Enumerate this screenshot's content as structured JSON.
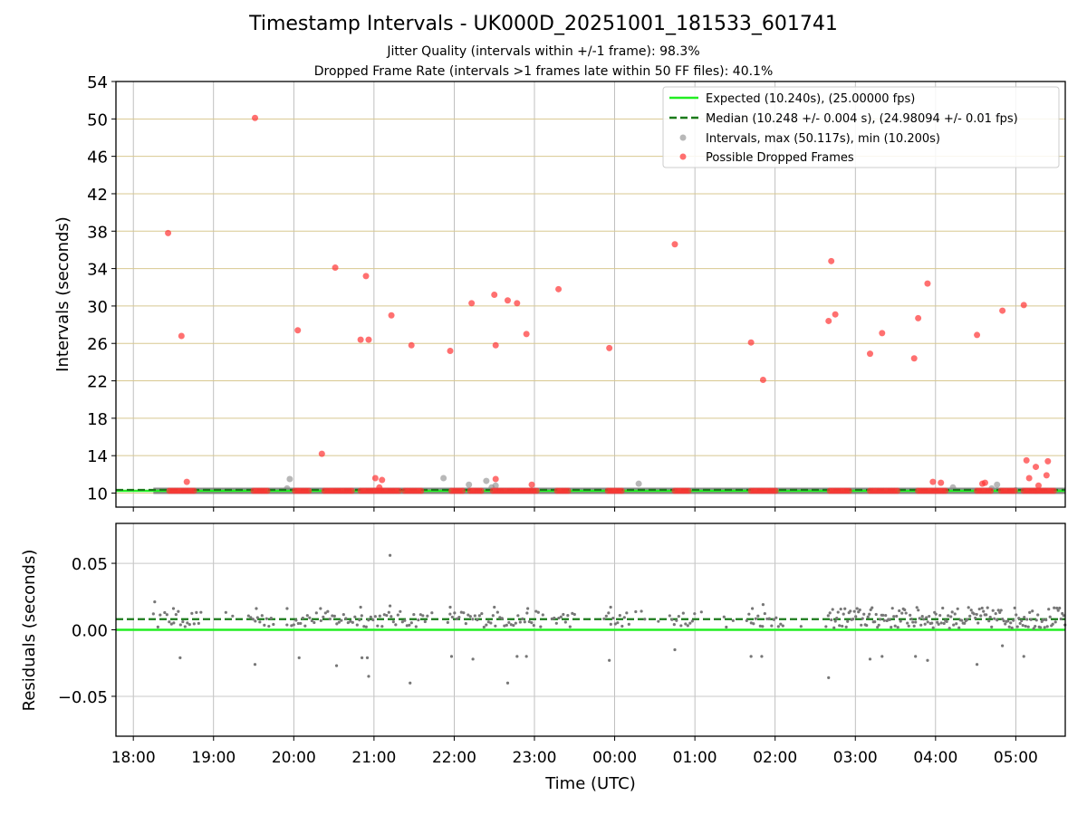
{
  "chart_data": {
    "type": "scatter",
    "title": "Timestamp Intervals - UK000D_20251001_181533_601741",
    "subtitle_lines": [
      "Jitter Quality (intervals within +/-1 frame): 98.3%",
      "Dropped Frame Rate (intervals >1 frames late within 50 FF files): 40.1%"
    ],
    "xlabel": "Time (UTC)",
    "x_axis": {
      "type": "time",
      "start": "2025-10-01T17:47",
      "end": "2025-10-02T05:37",
      "ticks": [
        "2025-10-01T18:00",
        "2025-10-01T19:00",
        "2025-10-01T20:00",
        "2025-10-01T21:00",
        "2025-10-01T22:00",
        "2025-10-01T23:00",
        "2025-10-02T00:00",
        "2025-10-02T01:00",
        "2025-10-02T02:00",
        "2025-10-02T03:00",
        "2025-10-02T04:00",
        "2025-10-02T05:00"
      ],
      "tick_labels": [
        "18:00",
        "19:00",
        "20:00",
        "21:00",
        "22:00",
        "23:00",
        "00:00",
        "01:00",
        "02:00",
        "03:00",
        "04:00",
        "05:00"
      ]
    },
    "top_panel": {
      "ylabel": "Intervals (seconds)",
      "ylim": [
        8.5,
        54
      ],
      "yticks": [
        10,
        14,
        18,
        22,
        26,
        30,
        34,
        38,
        42,
        46,
        50,
        54
      ],
      "grid": "on",
      "legend_position": "top-right",
      "series": [
        {
          "name": "Expected (10.240s), (25.00000 fps)",
          "kind": "hline",
          "value": 10.24,
          "color": "#22ee22",
          "style": "solid"
        },
        {
          "name": "Median (10.248 +/- 0.004 s), (24.98094 +/- 0.01 fps)",
          "kind": "hline",
          "value": 10.248,
          "color": "#1a7a1a",
          "style": "dashed"
        },
        {
          "name": "Intervals, max (50.117s), min (10.200s)",
          "kind": "scatter",
          "color": "#888888",
          "points": [
            [
              "2025-10-01T19:55",
              10.5
            ],
            [
              "2025-10-01T19:57",
              11.5
            ],
            [
              "2025-10-01T21:52",
              11.6
            ],
            [
              "2025-10-01T22:11",
              10.9
            ],
            [
              "2025-10-01T22:24",
              11.3
            ],
            [
              "2025-10-01T22:28",
              10.6
            ],
            [
              "2025-10-01T22:31",
              10.8
            ],
            [
              "2025-10-02T00:18",
              11.0
            ],
            [
              "2025-10-02T04:13",
              10.6
            ],
            [
              "2025-10-02T04:42",
              10.5
            ],
            [
              "2025-10-02T04:46",
              10.9
            ],
            [
              "2025-10-02T05:00",
              10.3
            ]
          ],
          "dense_ranges": [
            [
              "2025-10-01T18:15",
              "2025-10-02T05:37",
              10.24
            ]
          ]
        },
        {
          "name": "Possible Dropped Frames",
          "kind": "scatter",
          "color": "#ff3333",
          "points": [
            [
              "2025-10-01T18:26",
              37.8
            ],
            [
              "2025-10-01T18:36",
              26.8
            ],
            [
              "2025-10-01T18:40",
              11.2
            ],
            [
              "2025-10-01T19:31",
              50.1
            ],
            [
              "2025-10-01T20:03",
              27.4
            ],
            [
              "2025-10-01T20:21",
              14.2
            ],
            [
              "2025-10-01T20:31",
              34.1
            ],
            [
              "2025-10-01T20:50",
              26.4
            ],
            [
              "2025-10-01T20:54",
              33.2
            ],
            [
              "2025-10-01T20:56",
              26.4
            ],
            [
              "2025-10-01T21:01",
              11.6
            ],
            [
              "2025-10-01T21:04",
              10.6
            ],
            [
              "2025-10-01T21:06",
              11.4
            ],
            [
              "2025-10-01T21:13",
              29.0
            ],
            [
              "2025-10-01T21:28",
              25.8
            ],
            [
              "2025-10-01T21:57",
              25.2
            ],
            [
              "2025-10-01T22:13",
              30.3
            ],
            [
              "2025-10-01T22:30",
              31.2
            ],
            [
              "2025-10-01T22:31",
              25.8
            ],
            [
              "2025-10-01T22:31",
              11.5
            ],
            [
              "2025-10-01T22:40",
              30.6
            ],
            [
              "2025-10-01T22:47",
              30.3
            ],
            [
              "2025-10-01T22:54",
              27.0
            ],
            [
              "2025-10-01T22:58",
              10.9
            ],
            [
              "2025-10-01T23:18",
              31.8
            ],
            [
              "2025-10-01T23:56",
              25.5
            ],
            [
              "2025-10-02T00:45",
              36.6
            ],
            [
              "2025-10-02T01:42",
              26.1
            ],
            [
              "2025-10-02T01:51",
              22.1
            ],
            [
              "2025-10-02T02:40",
              28.4
            ],
            [
              "2025-10-02T02:42",
              34.8
            ],
            [
              "2025-10-02T02:45",
              29.1
            ],
            [
              "2025-10-02T03:11",
              24.9
            ],
            [
              "2025-10-02T03:20",
              27.1
            ],
            [
              "2025-10-02T03:44",
              24.4
            ],
            [
              "2025-10-02T03:47",
              28.7
            ],
            [
              "2025-10-02T03:54",
              32.4
            ],
            [
              "2025-10-02T03:58",
              11.2
            ],
            [
              "2025-10-02T04:04",
              11.1
            ],
            [
              "2025-10-02T04:31",
              26.9
            ],
            [
              "2025-10-02T04:35",
              11.0
            ],
            [
              "2025-10-02T04:37",
              11.1
            ],
            [
              "2025-10-02T04:50",
              29.5
            ],
            [
              "2025-10-02T05:06",
              30.1
            ],
            [
              "2025-10-02T05:08",
              13.5
            ],
            [
              "2025-10-02T05:10",
              11.6
            ],
            [
              "2025-10-02T05:15",
              12.8
            ],
            [
              "2025-10-02T05:17",
              10.8
            ],
            [
              "2025-10-02T05:24",
              13.4
            ],
            [
              "2025-10-02T05:23",
              11.9
            ]
          ],
          "dense_ranges": [
            [
              "2025-10-01T18:27",
              "2025-10-01T18:47",
              10.24
            ],
            [
              "2025-10-01T19:30",
              "2025-10-01T19:42",
              10.24
            ],
            [
              "2025-10-01T20:01",
              "2025-10-01T20:13",
              10.24
            ],
            [
              "2025-10-01T20:23",
              "2025-10-01T20:45",
              10.24
            ],
            [
              "2025-10-01T20:50",
              "2025-10-01T21:20",
              10.24
            ],
            [
              "2025-10-01T21:23",
              "2025-10-01T21:37",
              10.24
            ],
            [
              "2025-10-01T21:58",
              "2025-10-01T22:08",
              10.24
            ],
            [
              "2025-10-01T22:12",
              "2025-10-01T22:22",
              10.24
            ],
            [
              "2025-10-01T22:29",
              "2025-10-01T23:03",
              10.24
            ],
            [
              "2025-10-01T23:17",
              "2025-10-01T23:27",
              10.24
            ],
            [
              "2025-10-01T23:55",
              "2025-10-02T00:07",
              10.24
            ],
            [
              "2025-10-02T00:45",
              "2025-10-02T00:57",
              10.24
            ],
            [
              "2025-10-02T01:42",
              "2025-10-02T02:02",
              10.24
            ],
            [
              "2025-10-02T02:41",
              "2025-10-02T02:57",
              10.24
            ],
            [
              "2025-10-02T03:11",
              "2025-10-02T03:33",
              10.24
            ],
            [
              "2025-10-02T03:47",
              "2025-10-02T04:09",
              10.24
            ],
            [
              "2025-10-02T04:31",
              "2025-10-02T04:43",
              10.24
            ],
            [
              "2025-10-02T04:49",
              "2025-10-02T05:01",
              10.24
            ],
            [
              "2025-10-02T05:06",
              "2025-10-02T05:30",
              10.24
            ]
          ]
        }
      ]
    },
    "bottom_panel": {
      "ylabel": "Residuals (seconds)",
      "ylim": [
        -0.08,
        0.08
      ],
      "yticks": [
        0.05,
        0.0,
        -0.05
      ],
      "ytick_labels": [
        "0.05",
        "0.00",
        "−0.05"
      ],
      "grid": "on",
      "series": [
        {
          "name": "zero",
          "kind": "hline",
          "value": 0.0,
          "color": "#22ee22",
          "style": "solid"
        },
        {
          "name": "median offset",
          "kind": "hline",
          "value": 0.008,
          "color": "#1a7a1a",
          "style": "dashed"
        },
        {
          "name": "residuals",
          "kind": "scatter",
          "color": "#777777",
          "points": [
            [
              "2025-10-01T18:35",
              -0.021
            ],
            [
              "2025-10-01T19:31",
              -0.026
            ],
            [
              "2025-10-01T20:04",
              -0.021
            ],
            [
              "2025-10-01T20:32",
              -0.027
            ],
            [
              "2025-10-01T20:51",
              -0.021
            ],
            [
              "2025-10-01T20:55",
              -0.021
            ],
            [
              "2025-10-01T20:56",
              -0.035
            ],
            [
              "2025-10-01T21:12",
              0.056
            ],
            [
              "2025-10-01T21:27",
              -0.04
            ],
            [
              "2025-10-01T21:58",
              -0.02
            ],
            [
              "2025-10-01T22:14",
              -0.022
            ],
            [
              "2025-10-01T22:40",
              -0.04
            ],
            [
              "2025-10-01T22:47",
              -0.02
            ],
            [
              "2025-10-01T22:54",
              -0.02
            ],
            [
              "2025-10-01T23:56",
              -0.023
            ],
            [
              "2025-10-02T00:45",
              -0.015
            ],
            [
              "2025-10-02T01:42",
              -0.02
            ],
            [
              "2025-10-02T01:50",
              -0.02
            ],
            [
              "2025-10-02T02:40",
              -0.036
            ],
            [
              "2025-10-02T03:11",
              -0.022
            ],
            [
              "2025-10-02T03:20",
              -0.02
            ],
            [
              "2025-10-02T03:45",
              -0.02
            ],
            [
              "2025-10-02T03:54",
              -0.023
            ],
            [
              "2025-10-02T04:31",
              -0.026
            ],
            [
              "2025-10-02T04:50",
              -0.012
            ],
            [
              "2025-10-02T05:06",
              -0.02
            ],
            [
              "2025-10-01T18:16",
              0.021
            ],
            [
              "2025-10-01T18:30",
              0.016
            ],
            [
              "2025-10-01T19:32",
              0.016
            ],
            [
              "2025-10-01T19:55",
              0.016
            ],
            [
              "2025-10-01T20:20",
              0.016
            ],
            [
              "2025-10-01T20:50",
              0.017
            ],
            [
              "2025-10-01T21:12",
              0.018
            ],
            [
              "2025-10-01T21:57",
              0.017
            ],
            [
              "2025-10-01T22:30",
              0.017
            ],
            [
              "2025-10-01T22:55",
              0.016
            ],
            [
              "2025-10-01T23:57",
              0.017
            ],
            [
              "2025-10-02T00:20",
              0.014
            ],
            [
              "2025-10-02T01:43",
              0.016
            ],
            [
              "2025-10-02T01:51",
              0.019
            ]
          ],
          "dense_ranges": [
            [
              "2025-10-01T18:15",
              "2025-10-02T02:41",
              0.008,
              0.006
            ],
            [
              "2025-10-02T02:41",
              "2025-10-02T05:37",
              0.009,
              0.008
            ]
          ]
        }
      ]
    }
  }
}
